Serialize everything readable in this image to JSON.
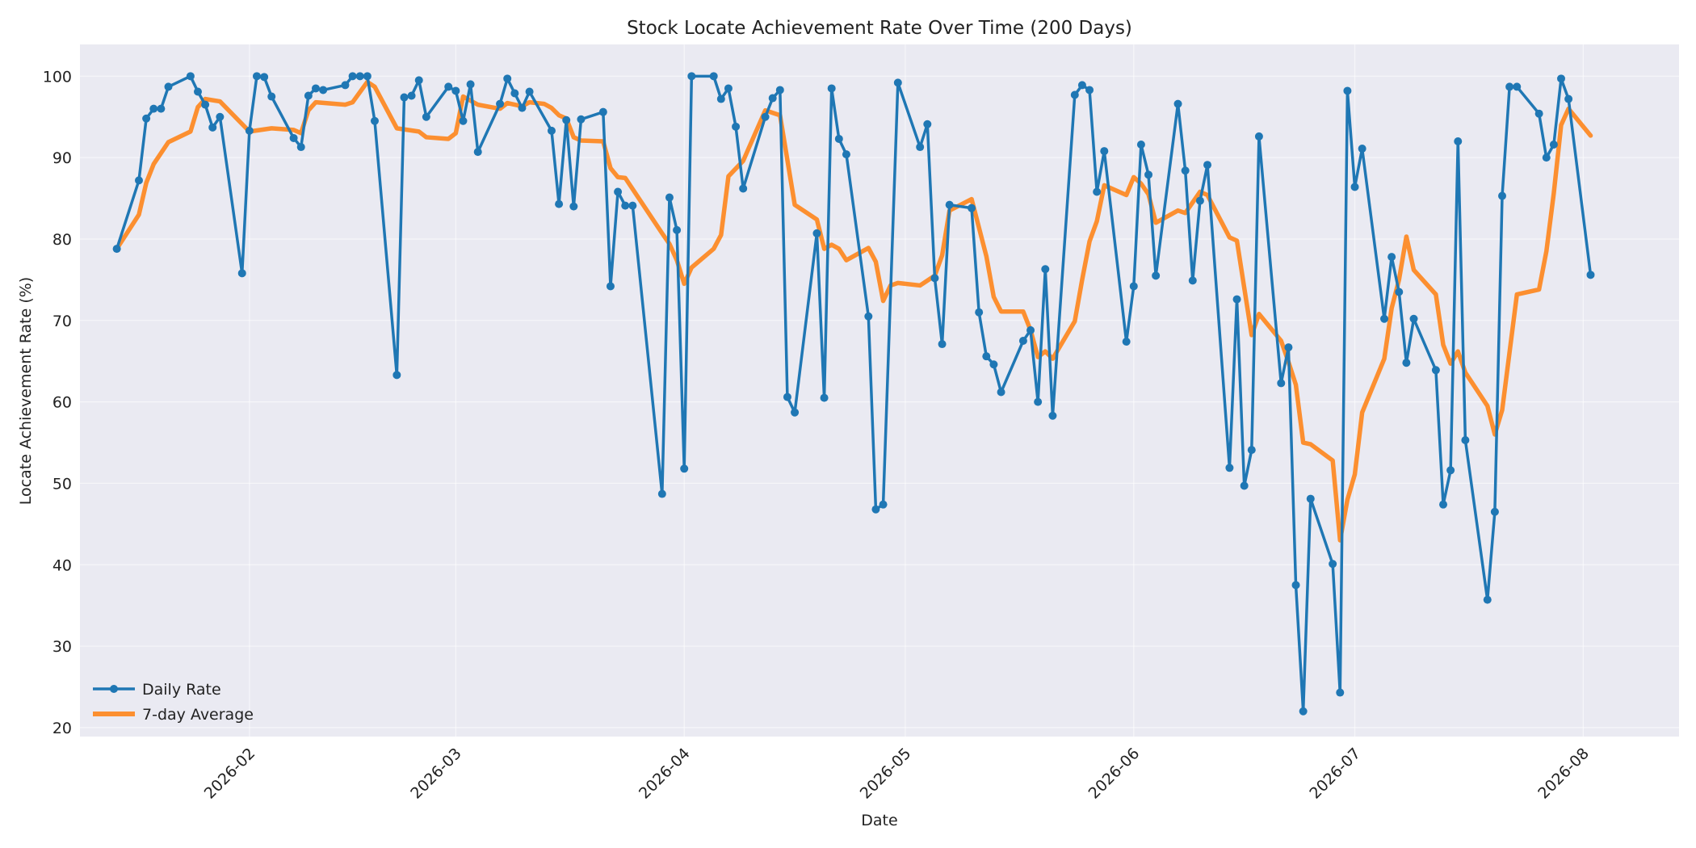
{
  "chart_data": {
    "type": "line",
    "title": "Stock Locate Achievement Rate Over Time (200 Days)",
    "xlabel": "Date",
    "ylabel": "Locate Achievement Rate (%)",
    "xlim": [
      "2026-01-09",
      "2026-08-14"
    ],
    "ylim": [
      18.9,
      103.9
    ],
    "grid": true,
    "legend_position": "lower-left",
    "x_ticks": [
      "2026-02-01",
      "2026-03-01",
      "2026-04-01",
      "2026-05-01",
      "2026-06-01",
      "2026-07-01",
      "2026-08-01"
    ],
    "x_tick_labels": [
      "2026-02",
      "2026-03",
      "2026-04",
      "2026-05",
      "2026-06",
      "2026-07",
      "2026-08"
    ],
    "y_ticks": [
      20,
      30,
      40,
      50,
      60,
      70,
      80,
      90,
      100
    ],
    "y_tick_labels": [
      "20",
      "30",
      "40",
      "50",
      "60",
      "70",
      "80",
      "90",
      "100"
    ],
    "series": [
      {
        "name": "Daily Rate",
        "color": "#1f77b4",
        "marker": "circle",
        "points": [
          [
            "2026-01-14",
            78.8
          ],
          [
            "2026-01-17",
            87.2
          ],
          [
            "2026-01-18",
            94.8
          ],
          [
            "2026-01-19",
            96.0
          ],
          [
            "2026-01-20",
            96.0
          ],
          [
            "2026-01-21",
            98.7
          ],
          [
            "2026-01-24",
            100.0
          ],
          [
            "2026-01-25",
            98.1
          ],
          [
            "2026-01-26",
            96.5
          ],
          [
            "2026-01-27",
            93.7
          ],
          [
            "2026-01-28",
            95.0
          ],
          [
            "2026-01-31",
            75.8
          ],
          [
            "2026-02-01",
            93.3
          ],
          [
            "2026-02-02",
            100.0
          ],
          [
            "2026-02-03",
            99.9
          ],
          [
            "2026-02-04",
            97.5
          ],
          [
            "2026-02-07",
            92.4
          ],
          [
            "2026-02-08",
            91.3
          ],
          [
            "2026-02-09",
            97.6
          ],
          [
            "2026-02-10",
            98.5
          ],
          [
            "2026-02-11",
            98.3
          ],
          [
            "2026-02-14",
            98.9
          ],
          [
            "2026-02-15",
            100.0
          ],
          [
            "2026-02-16",
            100.0
          ],
          [
            "2026-02-17",
            100.0
          ],
          [
            "2026-02-18",
            94.5
          ],
          [
            "2026-02-21",
            63.3
          ],
          [
            "2026-02-22",
            97.4
          ],
          [
            "2026-02-23",
            97.6
          ],
          [
            "2026-02-24",
            99.5
          ],
          [
            "2026-02-25",
            95.0
          ],
          [
            "2026-02-28",
            98.7
          ],
          [
            "2026-03-01",
            98.2
          ],
          [
            "2026-03-02",
            94.5
          ],
          [
            "2026-03-03",
            99.0
          ],
          [
            "2026-03-04",
            90.7
          ],
          [
            "2026-03-07",
            96.6
          ],
          [
            "2026-03-08",
            99.7
          ],
          [
            "2026-03-09",
            97.9
          ],
          [
            "2026-03-10",
            96.1
          ],
          [
            "2026-03-11",
            98.1
          ],
          [
            "2026-03-14",
            93.3
          ],
          [
            "2026-03-15",
            84.3
          ],
          [
            "2026-03-16",
            94.6
          ],
          [
            "2026-03-17",
            84.0
          ],
          [
            "2026-03-18",
            94.7
          ],
          [
            "2026-03-21",
            95.6
          ],
          [
            "2026-03-22",
            74.2
          ],
          [
            "2026-03-23",
            85.8
          ],
          [
            "2026-03-24",
            84.1
          ],
          [
            "2026-03-25",
            84.1
          ],
          [
            "2026-03-29",
            48.7
          ],
          [
            "2026-03-30",
            85.1
          ],
          [
            "2026-03-31",
            81.1
          ],
          [
            "2026-04-01",
            51.8
          ],
          [
            "2026-04-02",
            100.0
          ],
          [
            "2026-04-05",
            100.0
          ],
          [
            "2026-04-06",
            97.2
          ],
          [
            "2026-04-07",
            98.5
          ],
          [
            "2026-04-08",
            93.8
          ],
          [
            "2026-04-09",
            86.2
          ],
          [
            "2026-04-12",
            95.0
          ],
          [
            "2026-04-13",
            97.3
          ],
          [
            "2026-04-14",
            98.3
          ],
          [
            "2026-04-15",
            60.6
          ],
          [
            "2026-04-16",
            58.7
          ],
          [
            "2026-04-19",
            80.7
          ],
          [
            "2026-04-20",
            60.5
          ],
          [
            "2026-04-21",
            98.5
          ],
          [
            "2026-04-22",
            92.3
          ],
          [
            "2026-04-23",
            90.4
          ],
          [
            "2026-04-26",
            70.5
          ],
          [
            "2026-04-27",
            46.8
          ],
          [
            "2026-04-28",
            47.4
          ],
          [
            "2026-04-30",
            99.2
          ],
          [
            "2026-05-03",
            91.3
          ],
          [
            "2026-05-04",
            94.1
          ],
          [
            "2026-05-05",
            75.2
          ],
          [
            "2026-05-06",
            67.1
          ],
          [
            "2026-05-07",
            84.2
          ],
          [
            "2026-05-10",
            83.8
          ],
          [
            "2026-05-11",
            71.0
          ],
          [
            "2026-05-12",
            65.6
          ],
          [
            "2026-05-13",
            64.6
          ],
          [
            "2026-05-14",
            61.2
          ],
          [
            "2026-05-17",
            67.5
          ],
          [
            "2026-05-18",
            68.8
          ],
          [
            "2026-05-19",
            60.0
          ],
          [
            "2026-05-20",
            76.3
          ],
          [
            "2026-05-21",
            58.3
          ],
          [
            "2026-05-24",
            97.7
          ],
          [
            "2026-05-25",
            98.9
          ],
          [
            "2026-05-26",
            98.3
          ],
          [
            "2026-05-27",
            85.8
          ],
          [
            "2026-05-28",
            90.8
          ],
          [
            "2026-05-31",
            67.4
          ],
          [
            "2026-06-01",
            74.2
          ],
          [
            "2026-06-02",
            91.6
          ],
          [
            "2026-06-03",
            87.9
          ],
          [
            "2026-06-04",
            75.5
          ],
          [
            "2026-06-07",
            96.6
          ],
          [
            "2026-06-08",
            88.4
          ],
          [
            "2026-06-09",
            74.9
          ],
          [
            "2026-06-10",
            84.7
          ],
          [
            "2026-06-11",
            89.1
          ],
          [
            "2026-06-14",
            51.9
          ],
          [
            "2026-06-15",
            72.6
          ],
          [
            "2026-06-16",
            49.7
          ],
          [
            "2026-06-17",
            54.1
          ],
          [
            "2026-06-18",
            92.6
          ],
          [
            "2026-06-21",
            62.3
          ],
          [
            "2026-06-22",
            66.7
          ],
          [
            "2026-06-23",
            37.5
          ],
          [
            "2026-06-24",
            22.0
          ],
          [
            "2026-06-25",
            48.1
          ],
          [
            "2026-06-28",
            40.1
          ],
          [
            "2026-06-29",
            24.3
          ],
          [
            "2026-06-30",
            98.2
          ],
          [
            "2026-07-01",
            86.4
          ],
          [
            "2026-07-02",
            91.1
          ],
          [
            "2026-07-05",
            70.2
          ],
          [
            "2026-07-06",
            77.8
          ],
          [
            "2026-07-07",
            73.5
          ],
          [
            "2026-07-08",
            64.8
          ],
          [
            "2026-07-09",
            70.2
          ],
          [
            "2026-07-12",
            63.9
          ],
          [
            "2026-07-13",
            47.4
          ],
          [
            "2026-07-14",
            51.6
          ],
          [
            "2026-07-15",
            92.0
          ],
          [
            "2026-07-16",
            55.3
          ],
          [
            "2026-07-19",
            35.7
          ],
          [
            "2026-07-20",
            46.5
          ],
          [
            "2026-07-21",
            85.3
          ],
          [
            "2026-07-22",
            98.7
          ],
          [
            "2026-07-23",
            98.7
          ],
          [
            "2026-07-26",
            95.4
          ],
          [
            "2026-07-27",
            90.0
          ],
          [
            "2026-07-28",
            91.6
          ],
          [
            "2026-07-29",
            99.7
          ],
          [
            "2026-07-30",
            97.2
          ],
          [
            "2026-08-02",
            75.6
          ]
        ]
      },
      {
        "name": "7-day Average",
        "color": "#ff7f0e",
        "points": [
          [
            "2026-01-14",
            78.8
          ],
          [
            "2026-01-17",
            83.0
          ],
          [
            "2026-01-18",
            86.9
          ],
          [
            "2026-01-19",
            89.2
          ],
          [
            "2026-01-21",
            91.9
          ],
          [
            "2026-01-24",
            93.2
          ],
          [
            "2026-01-25",
            96.2
          ],
          [
            "2026-01-26",
            97.2
          ],
          [
            "2026-01-28",
            96.9
          ],
          [
            "2026-02-01",
            93.2
          ],
          [
            "2026-02-04",
            93.6
          ],
          [
            "2026-02-07",
            93.4
          ],
          [
            "2026-02-08",
            93.0
          ],
          [
            "2026-02-09",
            95.8
          ],
          [
            "2026-02-10",
            96.8
          ],
          [
            "2026-02-14",
            96.5
          ],
          [
            "2026-02-15",
            96.8
          ],
          [
            "2026-02-17",
            99.3
          ],
          [
            "2026-02-18",
            98.7
          ],
          [
            "2026-02-21",
            93.6
          ],
          [
            "2026-02-24",
            93.2
          ],
          [
            "2026-02-25",
            92.5
          ],
          [
            "2026-02-28",
            92.3
          ],
          [
            "2026-03-01",
            93.0
          ],
          [
            "2026-03-02",
            97.5
          ],
          [
            "2026-03-04",
            96.5
          ],
          [
            "2026-03-07",
            96.0
          ],
          [
            "2026-03-08",
            96.7
          ],
          [
            "2026-03-10",
            96.3
          ],
          [
            "2026-03-11",
            96.8
          ],
          [
            "2026-03-13",
            96.6
          ],
          [
            "2026-03-14",
            96.1
          ],
          [
            "2026-03-15",
            95.2
          ],
          [
            "2026-03-16",
            94.8
          ],
          [
            "2026-03-17",
            92.5
          ],
          [
            "2026-03-18",
            92.1
          ],
          [
            "2026-03-21",
            92.0
          ],
          [
            "2026-03-22",
            88.7
          ],
          [
            "2026-03-23",
            87.6
          ],
          [
            "2026-03-24",
            87.5
          ],
          [
            "2026-03-29",
            80.7
          ],
          [
            "2026-03-30",
            79.4
          ],
          [
            "2026-03-31",
            77.4
          ],
          [
            "2026-04-01",
            74.5
          ],
          [
            "2026-04-02",
            76.5
          ],
          [
            "2026-04-05",
            78.8
          ],
          [
            "2026-04-06",
            80.5
          ],
          [
            "2026-04-07",
            87.7
          ],
          [
            "2026-04-09",
            89.6
          ],
          [
            "2026-04-12",
            95.8
          ],
          [
            "2026-04-14",
            95.2
          ],
          [
            "2026-04-16",
            84.2
          ],
          [
            "2026-04-19",
            82.4
          ],
          [
            "2026-04-20",
            78.8
          ],
          [
            "2026-04-21",
            79.3
          ],
          [
            "2026-04-22",
            78.8
          ],
          [
            "2026-04-23",
            77.4
          ],
          [
            "2026-04-26",
            78.9
          ],
          [
            "2026-04-27",
            77.2
          ],
          [
            "2026-04-28",
            72.4
          ],
          [
            "2026-04-29",
            74.3
          ],
          [
            "2026-04-30",
            74.6
          ],
          [
            "2026-05-03",
            74.3
          ],
          [
            "2026-05-05",
            75.5
          ],
          [
            "2026-05-06",
            78.0
          ],
          [
            "2026-05-07",
            83.5
          ],
          [
            "2026-05-10",
            84.9
          ],
          [
            "2026-05-12",
            77.9
          ],
          [
            "2026-05-13",
            72.9
          ],
          [
            "2026-05-14",
            71.1
          ],
          [
            "2026-05-17",
            71.1
          ],
          [
            "2026-05-18",
            68.8
          ],
          [
            "2026-05-19",
            65.5
          ],
          [
            "2026-05-20",
            66.2
          ],
          [
            "2026-05-21",
            65.3
          ],
          [
            "2026-05-24",
            69.9
          ],
          [
            "2026-05-25",
            75.0
          ],
          [
            "2026-05-26",
            79.7
          ],
          [
            "2026-05-27",
            82.2
          ],
          [
            "2026-05-28",
            86.6
          ],
          [
            "2026-05-31",
            85.4
          ],
          [
            "2026-06-01",
            87.6
          ],
          [
            "2026-06-02",
            86.8
          ],
          [
            "2026-06-03",
            85.5
          ],
          [
            "2026-06-04",
            82.0
          ],
          [
            "2026-06-07",
            83.5
          ],
          [
            "2026-06-08",
            83.2
          ],
          [
            "2026-06-10",
            85.8
          ],
          [
            "2026-06-11",
            85.4
          ],
          [
            "2026-06-14",
            80.2
          ],
          [
            "2026-06-15",
            79.8
          ],
          [
            "2026-06-17",
            68.2
          ],
          [
            "2026-06-18",
            70.8
          ],
          [
            "2026-06-21",
            67.5
          ],
          [
            "2026-06-22",
            64.9
          ],
          [
            "2026-06-23",
            62.1
          ],
          [
            "2026-06-24",
            55.0
          ],
          [
            "2026-06-25",
            54.8
          ],
          [
            "2026-06-28",
            52.8
          ],
          [
            "2026-06-29",
            43.0
          ],
          [
            "2026-06-30",
            48.0
          ],
          [
            "2026-07-01",
            51.1
          ],
          [
            "2026-07-02",
            58.7
          ],
          [
            "2026-07-05",
            65.3
          ],
          [
            "2026-07-06",
            71.5
          ],
          [
            "2026-07-07",
            75.0
          ],
          [
            "2026-07-08",
            80.3
          ],
          [
            "2026-07-09",
            76.2
          ],
          [
            "2026-07-12",
            73.2
          ],
          [
            "2026-07-13",
            67.0
          ],
          [
            "2026-07-14",
            64.7
          ],
          [
            "2026-07-15",
            66.2
          ],
          [
            "2026-07-16",
            63.6
          ],
          [
            "2026-07-19",
            59.5
          ],
          [
            "2026-07-20",
            56.0
          ],
          [
            "2026-07-21",
            59.0
          ],
          [
            "2026-07-23",
            73.2
          ],
          [
            "2026-07-26",
            73.8
          ],
          [
            "2026-07-27",
            78.5
          ],
          [
            "2026-07-28",
            85.6
          ],
          [
            "2026-07-29",
            94.0
          ],
          [
            "2026-07-30",
            96.0
          ],
          [
            "2026-08-02",
            92.7
          ]
        ]
      }
    ]
  }
}
